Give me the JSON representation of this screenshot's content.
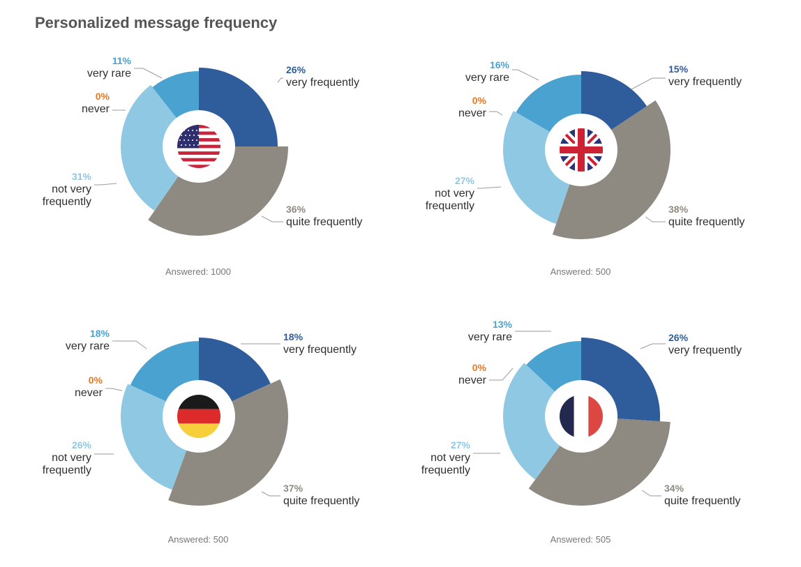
{
  "title": "Personalized message frequency",
  "colors": {
    "very_frequently": "#2f5d9c",
    "quite_frequently": "#8f8a81",
    "not_very_frequently": "#8fc8e3",
    "never": "#e27a27",
    "very_rare": "#4aa2d1"
  },
  "chart_data": [
    {
      "type": "pie",
      "flag": "usa-flag-icon",
      "answered": "Answered: 1000",
      "slices": [
        {
          "key": "very_frequently",
          "pct_label": "26%",
          "label": [
            "very frequently"
          ],
          "value": 26
        },
        {
          "key": "quite_frequently",
          "pct_label": "36%",
          "label": [
            "quite frequently"
          ],
          "value": 36
        },
        {
          "key": "not_very_frequently",
          "pct_label": "31%",
          "label": [
            "not very",
            "frequently"
          ],
          "value": 31
        },
        {
          "key": "never",
          "pct_label": "0%",
          "label": [
            "never"
          ],
          "value": 0
        },
        {
          "key": "very_rare",
          "pct_label": "11%",
          "label": [
            "very rare"
          ],
          "value": 11
        }
      ]
    },
    {
      "type": "pie",
      "flag": "uk-flag-icon",
      "answered": "Answered: 500",
      "slices": [
        {
          "key": "very_frequently",
          "pct_label": "15%",
          "label": [
            "very frequently"
          ],
          "value": 15
        },
        {
          "key": "quite_frequently",
          "pct_label": "38%",
          "label": [
            "quite frequently"
          ],
          "value": 38
        },
        {
          "key": "not_very_frequently",
          "pct_label": "27%",
          "label": [
            "not very",
            "frequently"
          ],
          "value": 27
        },
        {
          "key": "never",
          "pct_label": "0%",
          "label": [
            "never"
          ],
          "value": 0
        },
        {
          "key": "very_rare",
          "pct_label": "16%",
          "label": [
            "very rare"
          ],
          "value": 16
        }
      ]
    },
    {
      "type": "pie",
      "flag": "germany-flag-icon",
      "answered": "Answered: 500",
      "slices": [
        {
          "key": "very_frequently",
          "pct_label": "18%",
          "label": [
            "very frequently"
          ],
          "value": 18
        },
        {
          "key": "quite_frequently",
          "pct_label": "37%",
          "label": [
            "quite frequently"
          ],
          "value": 37
        },
        {
          "key": "not_very_frequently",
          "pct_label": "26%",
          "label": [
            "not very",
            "frequently"
          ],
          "value": 26
        },
        {
          "key": "never",
          "pct_label": "0%",
          "label": [
            "never"
          ],
          "value": 0
        },
        {
          "key": "very_rare",
          "pct_label": "18%",
          "label": [
            "very rare"
          ],
          "value": 18
        }
      ]
    },
    {
      "type": "pie",
      "flag": "france-flag-icon",
      "answered": "Answered: 505",
      "slices": [
        {
          "key": "very_frequently",
          "pct_label": "26%",
          "label": [
            "very frequently"
          ],
          "value": 26
        },
        {
          "key": "quite_frequently",
          "pct_label": "34%",
          "label": [
            "quite frequently"
          ],
          "value": 34
        },
        {
          "key": "not_very_frequently",
          "pct_label": "27%",
          "label": [
            "not very",
            "frequently"
          ],
          "value": 27
        },
        {
          "key": "never",
          "pct_label": "0%",
          "label": [
            "never"
          ],
          "value": 0
        },
        {
          "key": "very_rare",
          "pct_label": "13%",
          "label": [
            "very rare"
          ],
          "value": 13
        }
      ]
    }
  ]
}
